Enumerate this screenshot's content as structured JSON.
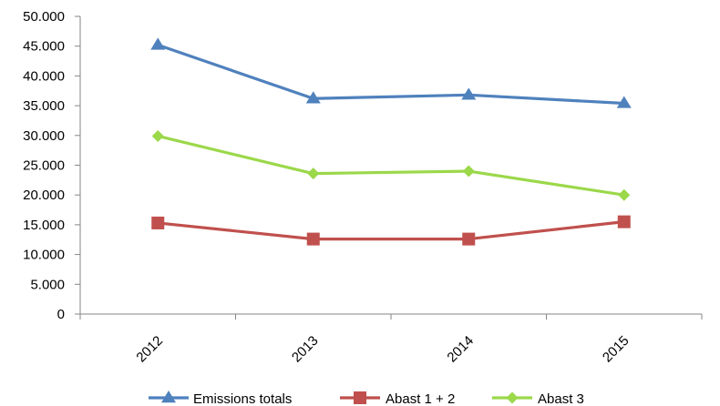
{
  "chart_data": {
    "type": "line",
    "title": "",
    "xlabel": "",
    "ylabel": "",
    "categories": [
      "2012",
      "2013",
      "2014",
      "2015"
    ],
    "ylim": [
      0,
      50000
    ],
    "yticks": [
      "0",
      "5.000",
      "10.000",
      "15.000",
      "20.000",
      "25.000",
      "30.000",
      "35.000",
      "40.000",
      "45.000",
      "50.000"
    ],
    "grid": false,
    "legend": "bottom",
    "series": [
      {
        "name": "Emissions totals",
        "values": [
          45200,
          36200,
          36800,
          35400
        ],
        "color": "#4f81bd",
        "marker": "triangle"
      },
      {
        "name": "Abast 1 + 2",
        "values": [
          15300,
          12600,
          12600,
          15500
        ],
        "color": "#c0504d",
        "marker": "square"
      },
      {
        "name": "Abast 3",
        "values": [
          29900,
          23600,
          24000,
          20000
        ],
        "color": "#9bd84a",
        "marker": "diamond"
      }
    ]
  }
}
